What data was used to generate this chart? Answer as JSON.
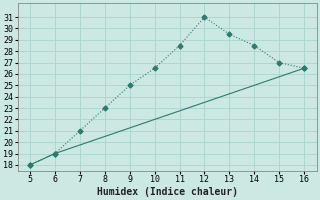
{
  "line1_x": [
    5,
    6,
    7,
    8,
    9,
    10,
    11,
    12,
    13,
    14,
    15,
    16
  ],
  "line1_y": [
    18.0,
    19.0,
    21.0,
    23.0,
    25.0,
    26.5,
    28.5,
    31.0,
    29.5,
    28.5,
    27.0,
    26.5
  ],
  "line2_x": [
    5,
    6,
    16
  ],
  "line2_y": [
    18.0,
    19.0,
    26.5
  ],
  "color": "#2d7a6e",
  "bg_color": "#cce8e3",
  "grid_color": "#aad4ce",
  "xlabel": "Humidex (Indice chaleur)",
  "ylim": [
    17.5,
    32.2
  ],
  "xlim": [
    4.5,
    16.5
  ],
  "yticks": [
    18,
    19,
    20,
    21,
    22,
    23,
    24,
    25,
    26,
    27,
    28,
    29,
    30,
    31
  ],
  "xticks": [
    5,
    6,
    7,
    8,
    9,
    10,
    11,
    12,
    13,
    14,
    15,
    16
  ],
  "markersize": 2.5,
  "linewidth": 0.8,
  "xlabel_fontsize": 7,
  "tick_fontsize": 6
}
